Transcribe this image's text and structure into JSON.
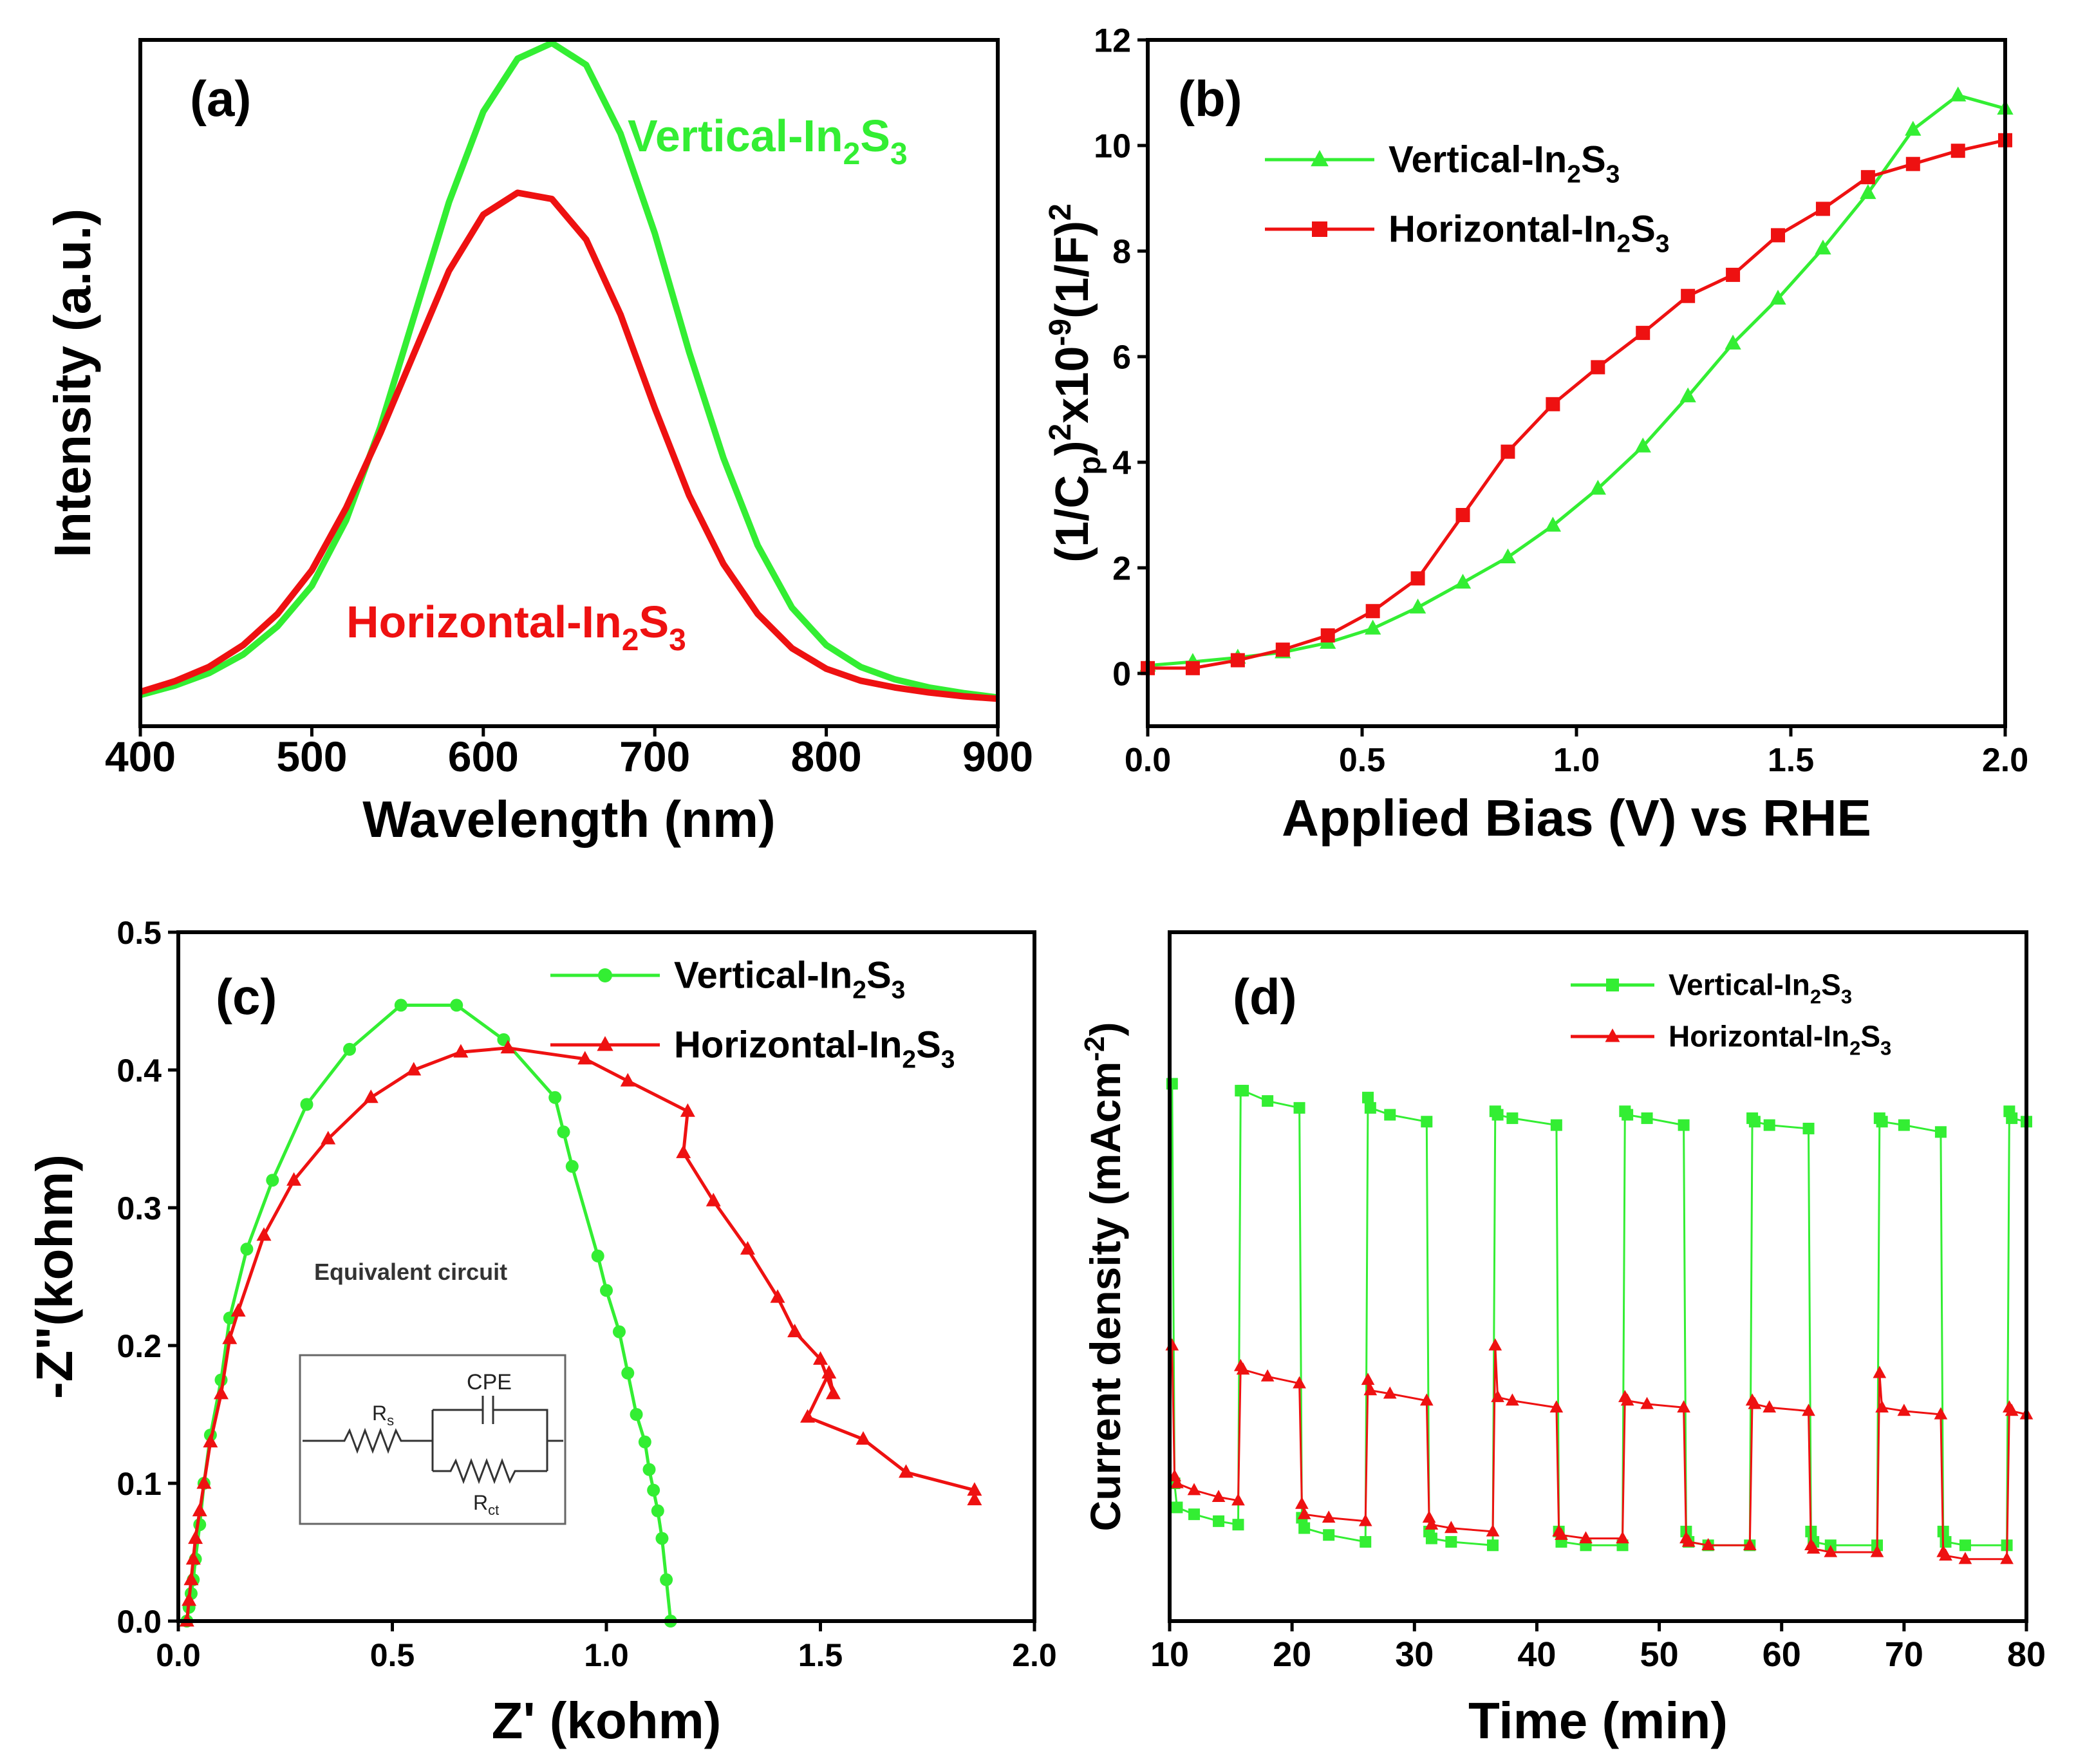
{
  "colors": {
    "vertical": "#33ee33",
    "horizontal": "#ee1111",
    "axis": "#000000"
  },
  "chart_data": [
    {
      "id": "a",
      "type": "line",
      "panel_label": "(a)",
      "xlabel": "Wavelength (nm)",
      "ylabel": "Intensity (a.u.)",
      "xlim": [
        400,
        900
      ],
      "ylim": [
        0,
        1.1
      ],
      "xticks": [
        "400",
        "500",
        "600",
        "700",
        "800",
        "900"
      ],
      "yticks": [],
      "legend": "inline",
      "series": [
        {
          "key": "vertical",
          "name": "Vertical-In₂S₃",
          "label_base": "Vertical-In",
          "label_sub1": "2",
          "label_mid": "S",
          "label_sub2": "3",
          "x": [
            400,
            420,
            440,
            460,
            480,
            500,
            520,
            540,
            560,
            580,
            600,
            620,
            640,
            660,
            680,
            700,
            720,
            740,
            760,
            780,
            800,
            820,
            840,
            860,
            880,
            900
          ],
          "y": [
            0.05,
            0.065,
            0.085,
            0.115,
            0.16,
            0.225,
            0.33,
            0.48,
            0.66,
            0.84,
            0.985,
            1.07,
            1.095,
            1.06,
            0.95,
            0.79,
            0.6,
            0.43,
            0.29,
            0.19,
            0.13,
            0.095,
            0.075,
            0.062,
            0.053,
            0.046
          ]
        },
        {
          "key": "horizontal",
          "name": "Horizontal-In₂S₃",
          "label_base": "Horizontal-In",
          "label_sub1": "2",
          "label_mid": "S",
          "label_sub2": "3",
          "x": [
            400,
            420,
            440,
            460,
            480,
            500,
            520,
            540,
            560,
            580,
            600,
            620,
            640,
            660,
            680,
            700,
            720,
            740,
            760,
            780,
            800,
            820,
            840,
            860,
            880,
            900
          ],
          "y": [
            0.055,
            0.072,
            0.095,
            0.13,
            0.18,
            0.25,
            0.35,
            0.47,
            0.6,
            0.73,
            0.82,
            0.855,
            0.845,
            0.78,
            0.66,
            0.51,
            0.37,
            0.26,
            0.18,
            0.125,
            0.092,
            0.073,
            0.062,
            0.054,
            0.048,
            0.044
          ]
        }
      ]
    },
    {
      "id": "b",
      "type": "line",
      "panel_label": "(b)",
      "xlabel": "Applied Bias (V) vs RHE",
      "ylabel_parts": [
        "(1/C",
        "p",
        ")",
        "2",
        "x10",
        "-9",
        "(1/F)",
        "2"
      ],
      "xlim": [
        0,
        2
      ],
      "ylim": [
        -1,
        12
      ],
      "xticks": [
        "0.0",
        "0.5",
        "1.0",
        "1.5",
        "2.0"
      ],
      "yticks": [
        "0",
        "2",
        "4",
        "6",
        "8",
        "10",
        "12"
      ],
      "legend": "upper-left",
      "series": [
        {
          "key": "vertical",
          "name": "Vertical-In₂S₃",
          "label_base": "Vertical-In",
          "label_sub1": "2",
          "label_mid": "S",
          "label_sub2": "3",
          "marker": "triangle",
          "x": [
            0,
            0.105,
            0.21,
            0.315,
            0.42,
            0.525,
            0.63,
            0.735,
            0.84,
            0.945,
            1.05,
            1.155,
            1.26,
            1.365,
            1.47,
            1.575,
            1.68,
            1.785,
            1.89,
            2.0
          ],
          "y": [
            0.15,
            0.22,
            0.3,
            0.4,
            0.58,
            0.85,
            1.25,
            1.72,
            2.2,
            2.8,
            3.5,
            4.3,
            5.25,
            6.25,
            7.1,
            8.05,
            9.1,
            10.3,
            10.95,
            10.7
          ]
        },
        {
          "key": "horizontal",
          "name": "Horizontal-In₂S₃",
          "label_base": "Horizontal-In",
          "label_sub1": "2",
          "label_mid": "S",
          "label_sub2": "3",
          "marker": "square",
          "x": [
            0,
            0.105,
            0.21,
            0.315,
            0.42,
            0.525,
            0.63,
            0.735,
            0.84,
            0.945,
            1.05,
            1.155,
            1.26,
            1.365,
            1.47,
            1.575,
            1.68,
            1.785,
            1.89,
            2.0
          ],
          "y": [
            0.1,
            0.1,
            0.25,
            0.45,
            0.72,
            1.18,
            1.8,
            3.0,
            4.2,
            5.1,
            5.8,
            6.45,
            7.15,
            7.55,
            8.3,
            8.8,
            9.4,
            9.65,
            9.9,
            10.1
          ]
        }
      ]
    },
    {
      "id": "c",
      "type": "line",
      "panel_label": "(c)",
      "xlabel": "Z' (kohm)",
      "ylabel": "-Z\"(kohm)",
      "xlim": [
        0,
        2
      ],
      "ylim": [
        0,
        0.5
      ],
      "xticks": [
        "0.0",
        "0.5",
        "1.0",
        "1.5",
        "2.0"
      ],
      "yticks": [
        "0.0",
        "0.1",
        "0.2",
        "0.3",
        "0.4",
        "0.5"
      ],
      "legend": "upper-right",
      "inset": {
        "title": "Equivalent circuit",
        "cpe": "CPE",
        "rs_main": "R",
        "rs_sub": "s",
        "rct_main": "R",
        "rct_sub": "ct"
      },
      "series": [
        {
          "key": "vertical",
          "name": "Vertical-In₂S₃",
          "label_base": "Vertical-In",
          "label_sub1": "2",
          "label_mid": "S",
          "label_sub2": "3",
          "marker": "circle",
          "x": [
            0.02,
            0.025,
            0.03,
            0.035,
            0.04,
            0.05,
            0.06,
            0.075,
            0.1,
            0.12,
            0.16,
            0.22,
            0.3,
            0.4,
            0.52,
            0.65,
            0.76,
            0.88,
            0.9,
            0.92,
            0.98,
            1.0,
            1.03,
            1.05,
            1.07,
            1.09,
            1.1,
            1.11,
            1.12,
            1.13,
            1.14,
            1.15
          ],
          "y": [
            0.0,
            0.01,
            0.02,
            0.03,
            0.045,
            0.07,
            0.1,
            0.135,
            0.175,
            0.22,
            0.27,
            0.32,
            0.375,
            0.415,
            0.447,
            0.447,
            0.422,
            0.38,
            0.355,
            0.33,
            0.265,
            0.24,
            0.21,
            0.18,
            0.15,
            0.13,
            0.11,
            0.095,
            0.08,
            0.06,
            0.03,
            0.0
          ]
        },
        {
          "key": "horizontal",
          "name": "Horizontal-In₂S₃",
          "label_base": "Horizontal-In",
          "label_sub1": "2",
          "label_mid": "S",
          "label_sub2": "3",
          "marker": "triangle",
          "x": [
            0.02,
            0.025,
            0.03,
            0.035,
            0.04,
            0.05,
            0.06,
            0.075,
            0.1,
            0.12,
            0.14,
            0.2,
            0.27,
            0.35,
            0.45,
            0.55,
            0.66,
            0.77,
            0.95,
            1.05,
            1.19,
            1.18,
            1.25,
            1.33,
            1.4,
            1.44,
            1.5,
            1.53,
            1.52,
            1.47,
            1.6,
            1.7,
            1.86,
            1.86
          ],
          "y": [
            0.0,
            0.015,
            0.03,
            0.045,
            0.06,
            0.08,
            0.1,
            0.13,
            0.165,
            0.205,
            0.225,
            0.28,
            0.32,
            0.35,
            0.38,
            0.4,
            0.413,
            0.416,
            0.408,
            0.392,
            0.37,
            0.34,
            0.305,
            0.27,
            0.235,
            0.21,
            0.19,
            0.165,
            0.18,
            0.148,
            0.132,
            0.108,
            0.095,
            0.088
          ]
        }
      ]
    },
    {
      "id": "d",
      "type": "line",
      "panel_label": "(d)",
      "xlabel": "Time (min)",
      "ylabel_parts": [
        "Current density (mAcm",
        "-2",
        ")"
      ],
      "xlim": [
        10,
        80
      ],
      "ylim": [
        0,
        1
      ],
      "xticks": [
        "10",
        "20",
        "30",
        "40",
        "50",
        "60",
        "70",
        "80"
      ],
      "yticks": [],
      "legend": "upper-right",
      "series": [
        {
          "key": "vertical",
          "name": "Vertical-In₂S₃",
          "label_base": "Vertical-In",
          "label_sub1": "2",
          "label_mid": "S",
          "label_sub2": "3",
          "marker": "square",
          "x": [
            10.2,
            10.4,
            10.6,
            12,
            14,
            15.6,
            15.8,
            16,
            18,
            20.6,
            20.8,
            21,
            23,
            26,
            26.2,
            26.4,
            28,
            31,
            31.2,
            31.4,
            33,
            36.4,
            36.6,
            36.8,
            38,
            41.6,
            41.8,
            42,
            44,
            47,
            47.2,
            47.4,
            49,
            52,
            52.2,
            52.4,
            54,
            57.4,
            57.6,
            57.8,
            59,
            62.2,
            62.4,
            62.6,
            64,
            67.8,
            68,
            68.2,
            70,
            73,
            73.2,
            73.4,
            75,
            78.4,
            78.6,
            78.8,
            80
          ],
          "y": [
            0.78,
            0.2,
            0.165,
            0.155,
            0.145,
            0.14,
            0.77,
            0.77,
            0.755,
            0.745,
            0.15,
            0.135,
            0.125,
            0.115,
            0.76,
            0.745,
            0.735,
            0.725,
            0.13,
            0.12,
            0.115,
            0.11,
            0.74,
            0.735,
            0.73,
            0.72,
            0.13,
            0.115,
            0.11,
            0.11,
            0.74,
            0.735,
            0.73,
            0.72,
            0.13,
            0.115,
            0.11,
            0.11,
            0.73,
            0.725,
            0.72,
            0.715,
            0.13,
            0.115,
            0.11,
            0.11,
            0.73,
            0.725,
            0.72,
            0.71,
            0.13,
            0.115,
            0.11,
            0.11,
            0.74,
            0.73,
            0.725
          ]
        },
        {
          "key": "horizontal",
          "name": "Horizontal-In₂S₃",
          "label_base": "Horizontal-In",
          "label_sub1": "2",
          "label_mid": "S",
          "label_sub2": "3",
          "marker": "triangle",
          "x": [
            10.2,
            10.4,
            10.6,
            12,
            14,
            15.6,
            15.8,
            16,
            18,
            20.6,
            20.8,
            21,
            23,
            26,
            26.2,
            26.4,
            28,
            31,
            31.2,
            31.4,
            33,
            36.4,
            36.6,
            36.8,
            38,
            41.6,
            41.8,
            42,
            44,
            47,
            47.2,
            47.4,
            49,
            52,
            52.2,
            52.4,
            54,
            57.4,
            57.6,
            57.8,
            59,
            62.2,
            62.4,
            62.6,
            64,
            67.8,
            68,
            68.2,
            70,
            73,
            73.2,
            73.4,
            75,
            78.4,
            78.6,
            78.8,
            80
          ],
          "y": [
            0.4,
            0.21,
            0.2,
            0.19,
            0.18,
            0.175,
            0.37,
            0.365,
            0.355,
            0.345,
            0.17,
            0.155,
            0.15,
            0.145,
            0.35,
            0.335,
            0.33,
            0.32,
            0.15,
            0.14,
            0.135,
            0.13,
            0.4,
            0.325,
            0.32,
            0.31,
            0.13,
            0.125,
            0.12,
            0.12,
            0.325,
            0.32,
            0.315,
            0.31,
            0.12,
            0.115,
            0.11,
            0.11,
            0.32,
            0.315,
            0.31,
            0.305,
            0.11,
            0.105,
            0.1,
            0.1,
            0.36,
            0.31,
            0.305,
            0.3,
            0.1,
            0.095,
            0.09,
            0.09,
            0.31,
            0.305,
            0.3
          ]
        }
      ]
    }
  ]
}
